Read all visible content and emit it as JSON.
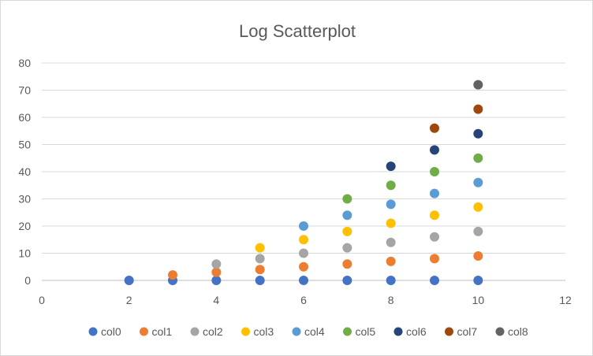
{
  "chart_data": {
    "type": "scatter",
    "title": "Log Scatterplot",
    "xlabel": "",
    "ylabel": "",
    "xlim": [
      0,
      12
    ],
    "ylim": [
      0,
      80
    ],
    "x_ticks": [
      "0",
      "2",
      "4",
      "6",
      "8",
      "10",
      "12"
    ],
    "y_ticks": [
      "0",
      "10",
      "20",
      "30",
      "40",
      "50",
      "60",
      "70",
      "80"
    ],
    "grid": "horizontal",
    "legend_position": "bottom",
    "series": [
      {
        "name": "col0",
        "color": "#4472C4",
        "points": [
          [
            2,
            0
          ],
          [
            3,
            0
          ],
          [
            4,
            0
          ],
          [
            5,
            0
          ],
          [
            6,
            0
          ],
          [
            7,
            0
          ],
          [
            8,
            0
          ],
          [
            9,
            0
          ],
          [
            10,
            0
          ]
        ]
      },
      {
        "name": "col1",
        "color": "#ED7D31",
        "points": [
          [
            3,
            2
          ],
          [
            4,
            3
          ],
          [
            5,
            4
          ],
          [
            6,
            5
          ],
          [
            7,
            6
          ],
          [
            8,
            7
          ],
          [
            9,
            8
          ],
          [
            10,
            9
          ]
        ]
      },
      {
        "name": "col2",
        "color": "#A5A5A5",
        "points": [
          [
            4,
            6
          ],
          [
            5,
            8
          ],
          [
            6,
            10
          ],
          [
            7,
            12
          ],
          [
            8,
            14
          ],
          [
            9,
            16
          ],
          [
            10,
            18
          ]
        ]
      },
      {
        "name": "col3",
        "color": "#FFC000",
        "points": [
          [
            5,
            12
          ],
          [
            6,
            15
          ],
          [
            7,
            18
          ],
          [
            8,
            21
          ],
          [
            9,
            24
          ],
          [
            10,
            27
          ]
        ]
      },
      {
        "name": "col4",
        "color": "#5B9BD5",
        "points": [
          [
            6,
            20
          ],
          [
            7,
            24
          ],
          [
            8,
            28
          ],
          [
            9,
            32
          ],
          [
            10,
            36
          ]
        ]
      },
      {
        "name": "col5",
        "color": "#70AD47",
        "points": [
          [
            7,
            30
          ],
          [
            8,
            35
          ],
          [
            9,
            40
          ],
          [
            10,
            45
          ]
        ]
      },
      {
        "name": "col6",
        "color": "#264478",
        "points": [
          [
            8,
            42
          ],
          [
            9,
            48
          ],
          [
            10,
            54
          ]
        ]
      },
      {
        "name": "col7",
        "color": "#9E480E",
        "points": [
          [
            9,
            56
          ],
          [
            10,
            63
          ]
        ]
      },
      {
        "name": "col8",
        "color": "#636363",
        "points": [
          [
            10,
            72
          ]
        ]
      }
    ]
  }
}
